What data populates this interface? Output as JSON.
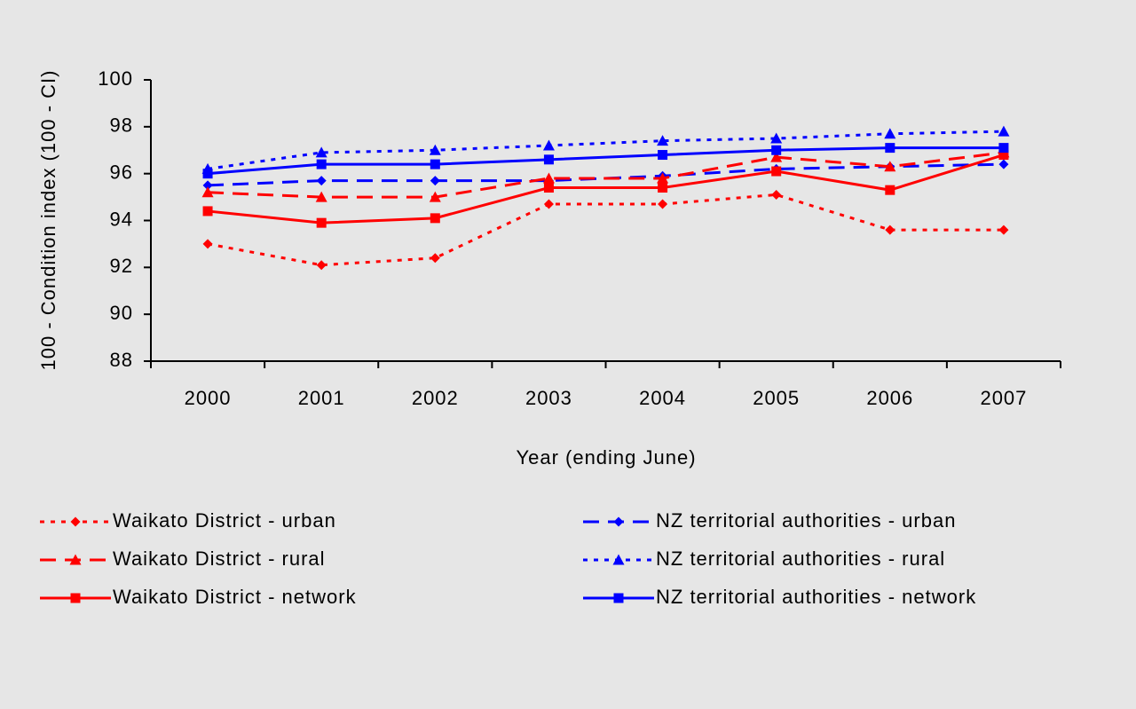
{
  "chart_data": {
    "type": "line",
    "x_label": "Year (ending June)",
    "y_label": "100 - Condition index (100 - CI)",
    "categories": [
      "2000",
      "2001",
      "2002",
      "2003",
      "2004",
      "2005",
      "2006",
      "2007"
    ],
    "ylim": [
      88,
      100
    ],
    "yticks": [
      88,
      90,
      92,
      94,
      96,
      98,
      100
    ],
    "legend": "bottom",
    "series": [
      {
        "name": "Waikato District - urban",
        "color": "#ff0000",
        "dash": "dotted",
        "marker": "diamond",
        "values": [
          93.0,
          92.1,
          92.4,
          94.7,
          94.7,
          95.1,
          93.6,
          93.6
        ]
      },
      {
        "name": "NZ territorial authorities - urban",
        "color": "#0000ff",
        "dash": "dashed",
        "marker": "diamond",
        "values": [
          95.5,
          95.7,
          95.7,
          95.7,
          95.9,
          96.2,
          96.3,
          96.4
        ]
      },
      {
        "name": "Waikato District - rural",
        "color": "#ff0000",
        "dash": "dashed",
        "marker": "triangle",
        "values": [
          95.2,
          95.0,
          95.0,
          95.8,
          95.8,
          96.7,
          96.3,
          96.9
        ]
      },
      {
        "name": "NZ territorial authorities - rural",
        "color": "#0000ff",
        "dash": "dotted",
        "marker": "triangle",
        "values": [
          96.2,
          96.9,
          97.0,
          97.2,
          97.4,
          97.5,
          97.7,
          97.8
        ]
      },
      {
        "name": "Waikato District - network",
        "color": "#ff0000",
        "dash": "solid",
        "marker": "square",
        "values": [
          94.4,
          93.9,
          94.1,
          95.4,
          95.4,
          96.1,
          95.3,
          96.8
        ]
      },
      {
        "name": "NZ territorial authorities - network",
        "color": "#0000ff",
        "dash": "solid",
        "marker": "square",
        "values": [
          96.0,
          96.4,
          96.4,
          96.6,
          96.8,
          97.0,
          97.1,
          97.1
        ]
      }
    ]
  }
}
